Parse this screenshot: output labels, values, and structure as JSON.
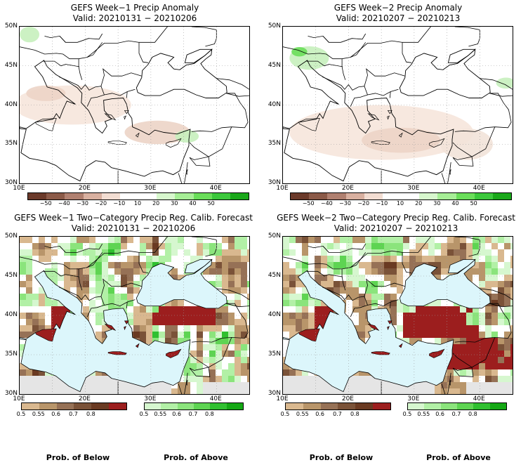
{
  "colors": {
    "sea": "#dcf6fb",
    "land_neutral": "#ffffff",
    "gray": "#e5e5e5",
    "below_text": "#8b4a2a",
    "above_text": "#1a9a1a"
  },
  "panels": [
    {
      "id": "w1-anom",
      "title": "GEFS Week−1 Precip Anomaly",
      "valid": "Valid: 20210131 − 20210206",
      "type": "anomaly",
      "lat_labels": [
        "50N",
        "45N",
        "40N",
        "35N",
        "30N"
      ],
      "lon_labels": [
        "10E",
        "20E",
        "30E",
        "40E"
      ]
    },
    {
      "id": "w2-anom",
      "title": "GEFS Week−2 Precip Anomaly",
      "valid": "Valid: 20210207 − 20210213",
      "type": "anomaly",
      "lat_labels": [
        "50N",
        "45N",
        "40N",
        "35N",
        "30N"
      ],
      "lon_labels": [
        "10E",
        "20E",
        "30E",
        "40E"
      ]
    },
    {
      "id": "w1-prob",
      "title": "GEFS Week−1 Two−Category Precip Reg. Calib. Forecast",
      "valid": "Valid: 20210131 − 20210206",
      "type": "prob",
      "lat_labels": [
        "50N",
        "45N",
        "40N",
        "35N",
        "30N"
      ],
      "lon_labels": [
        "10E",
        "20E",
        "30E",
        "40E"
      ]
    },
    {
      "id": "w2-prob",
      "title": "GEFS Week−2 Two−Category Precip Reg. Calib. Forecast",
      "valid": "Valid: 20210207 − 20210213",
      "type": "prob",
      "lat_labels": [
        "50N",
        "45N",
        "40N",
        "35N",
        "30N"
      ],
      "lon_labels": [
        "10E",
        "20E",
        "30E",
        "40E"
      ]
    }
  ],
  "anomaly_colorbar": {
    "colors": [
      "#6b3a2a",
      "#8b5a48",
      "#b08070",
      "#d8b0a0",
      "#f2ddd2",
      "#ffffff",
      "#ffffff",
      "#d7f7cd",
      "#a6ee96",
      "#6ade5a",
      "#3cc83c",
      "#1aa81a"
    ],
    "labels": [
      "−50",
      "−40",
      "−30",
      "−20",
      "−10",
      "10",
      "20",
      "30",
      "40",
      "50"
    ]
  },
  "below_colorbar": {
    "colors": [
      "#d9b88f",
      "#b8956a",
      "#967156",
      "#7a5238",
      "#6a3a22",
      "#9c1e1e"
    ],
    "labels": [
      "0.5",
      "0.55",
      "0.6",
      "0.7",
      "0.8"
    ]
  },
  "above_colorbar": {
    "colors": [
      "#d6f7cf",
      "#b2f0a6",
      "#8be47c",
      "#5ed452",
      "#30c030",
      "#14a814"
    ],
    "labels": [
      "0.5",
      "0.55",
      "0.6",
      "0.7",
      "0.8"
    ]
  },
  "prob_labels": {
    "below": "Prob. of Below",
    "above": "Prob. of Above"
  }
}
